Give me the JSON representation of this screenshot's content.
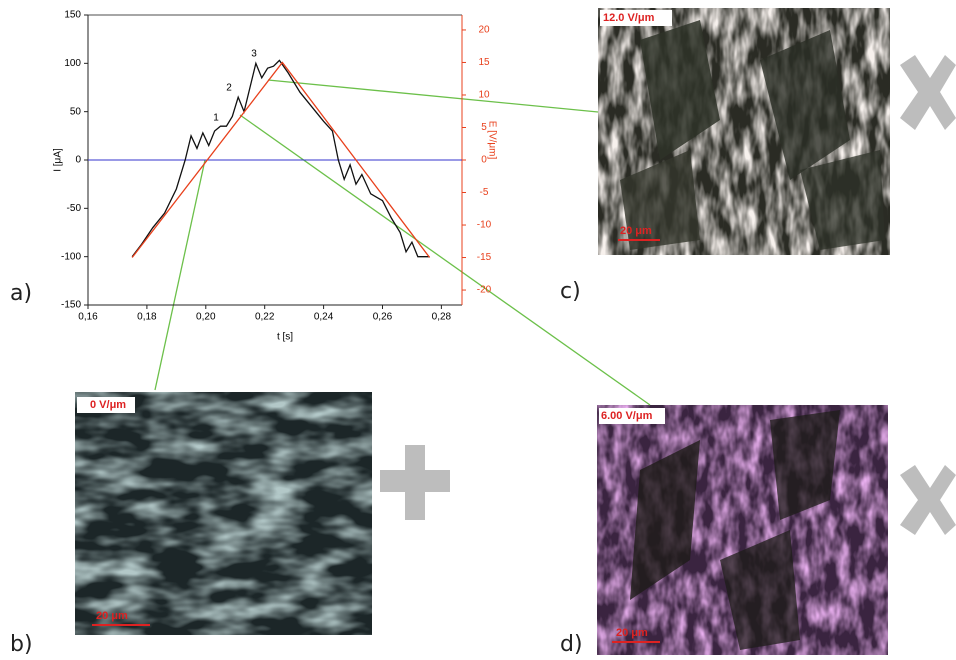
{
  "chart_data": {
    "type": "line",
    "xlabel": "t [s]",
    "ylabel": "I [μA]",
    "y2label": "E [V/μm]",
    "xlim": [
      0.16,
      0.287
    ],
    "xticks": [
      {
        "value": 0.16,
        "label": "0,16"
      },
      {
        "value": 0.18,
        "label": "0,18"
      },
      {
        "value": 0.2,
        "label": "0,20"
      },
      {
        "value": 0.22,
        "label": "0,22"
      },
      {
        "value": 0.24,
        "label": "0,24"
      },
      {
        "value": 0.26,
        "label": "0,26"
      },
      {
        "value": 0.28,
        "label": "0,28"
      }
    ],
    "ylim": [
      -150,
      150
    ],
    "yticks": [
      150,
      100,
      50,
      0,
      -50,
      -100,
      -150
    ],
    "y2lim": [
      -22.3,
      22.3
    ],
    "y2ticks": [
      20,
      15,
      10,
      5,
      0,
      -5,
      -10,
      -15,
      -20
    ],
    "reference_line": {
      "y": 0,
      "color": "#3333cc"
    },
    "series": [
      {
        "color": "#111111",
        "x": [
          0.175,
          0.178,
          0.182,
          0.186,
          0.19,
          0.193,
          0.195,
          0.197,
          0.199,
          0.201,
          0.203,
          0.205,
          0.207,
          0.209,
          0.211,
          0.213,
          0.215,
          0.217,
          0.219,
          0.221,
          0.223,
          0.225,
          0.228,
          0.232,
          0.236,
          0.24,
          0.243,
          0.245,
          0.247,
          0.249,
          0.251,
          0.253,
          0.256,
          0.26,
          0.263,
          0.266,
          0.268,
          0.27,
          0.272,
          0.276
        ],
        "values": [
          -100,
          -88,
          -70,
          -55,
          -30,
          0,
          25,
          12,
          28,
          15,
          30,
          35,
          35,
          45,
          65,
          50,
          75,
          100,
          85,
          95,
          97,
          103,
          90,
          70,
          55,
          40,
          30,
          0,
          -20,
          -5,
          -25,
          -15,
          -35,
          -42,
          -60,
          -75,
          -95,
          -85,
          -100,
          -100
        ]
      },
      {
        "color": "#e8401c",
        "axis": "y2",
        "x": [
          0.175,
          0.226,
          0.276
        ],
        "values": [
          -15,
          15,
          -15
        ]
      }
    ],
    "annotations": [
      "1",
      "2",
      "3"
    ]
  },
  "panels": {
    "a": "a)",
    "b": "b)",
    "c": "c)",
    "d": "d)"
  },
  "images": {
    "c": {
      "field": "12.0 V/μm",
      "scale": "20 μm"
    },
    "b": {
      "field": "0 V/μm",
      "scale": "20 μm"
    },
    "d": {
      "field": "6.00 V/μm",
      "scale": "20 μm"
    }
  }
}
